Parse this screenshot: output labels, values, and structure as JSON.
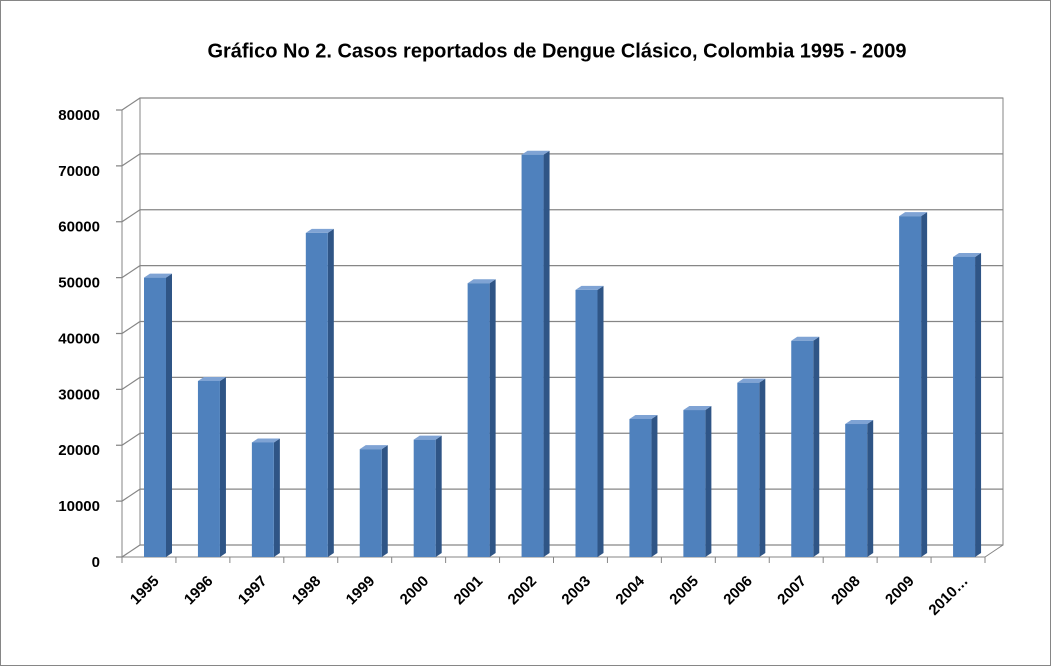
{
  "chart_data": {
    "type": "bar3d",
    "title": "Gráfico No  2. Casos reportados de Dengue Clásico, Colombia 1995 - 2009",
    "categories": [
      "1995",
      "1996",
      "1997",
      "1998",
      "1999",
      "2000",
      "2001",
      "2002",
      "2003",
      "2004",
      "2005",
      "2006",
      "2007",
      "2008",
      "2009",
      "2010…"
    ],
    "values": [
      50000,
      31500,
      20500,
      58000,
      19300,
      21000,
      49000,
      72000,
      47800,
      24700,
      26300,
      31200,
      38700,
      23800,
      61000,
      53700
    ],
    "color": "#4f81bd",
    "ylim": [
      0,
      80000
    ],
    "yticks": [
      0,
      10000,
      20000,
      30000,
      40000,
      50000,
      60000,
      70000,
      80000
    ],
    "grid": true
  }
}
